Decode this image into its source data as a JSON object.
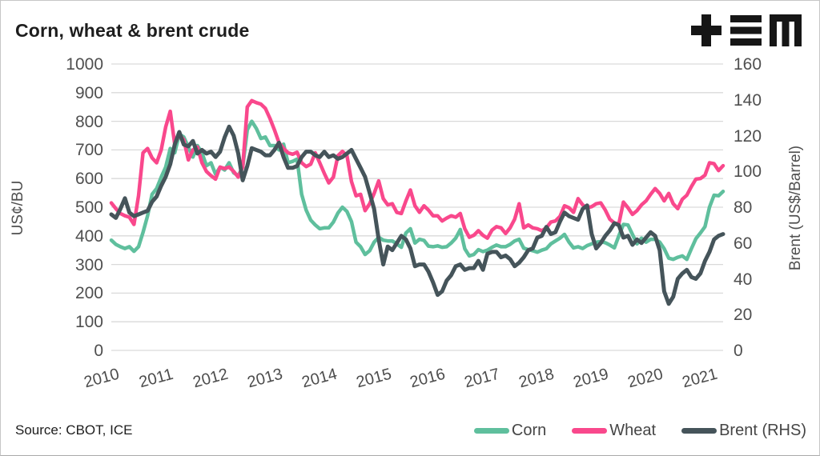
{
  "header": {
    "title": "Corn, wheat & brent crude",
    "logo_name": "tem-logo"
  },
  "footer": {
    "source": "Source: CBOT, ICE"
  },
  "colors": {
    "corn": "#5fbf9d",
    "wheat": "#f9488c",
    "brent": "#45545a",
    "gridline": "#d9d9d9",
    "tick_text": "#4f4f4f",
    "title_text": "#1d1d1d",
    "logo_black": "#161616"
  },
  "chart_data": {
    "type": "line",
    "title": "Corn, wheat & brent crude",
    "grid": "horizontal",
    "legend_position": "bottom-right",
    "x_min_year": 2010,
    "x_max_year": 2021.25,
    "x_tick_labels": [
      "2010",
      "2011",
      "2012",
      "2013",
      "2014",
      "2015",
      "2016",
      "2017",
      "2018",
      "2019",
      "2020",
      "2021"
    ],
    "left_axis": {
      "label": "US¢/BU",
      "min": 0,
      "max": 1000,
      "tick_step": 100,
      "tick_labels": [
        "0",
        "100",
        "200",
        "300",
        "400",
        "500",
        "600",
        "700",
        "800",
        "900",
        "1000"
      ]
    },
    "right_axis": {
      "label": "Brent (US$/Barrel)",
      "min": 0,
      "max": 160,
      "tick_step": 20,
      "tick_labels": [
        "0",
        "20",
        "40",
        "60",
        "80",
        "100",
        "120",
        "140",
        "160"
      ]
    },
    "frequency": "monthly",
    "start": "2010-01",
    "series": [
      {
        "name": "Corn",
        "axis": "left",
        "color": "#5fbf9d",
        "values": [
          385,
          370,
          362,
          356,
          362,
          346,
          362,
          412,
          470,
          545,
          565,
          605,
          640,
          705,
          690,
          755,
          745,
          710,
          675,
          715,
          690,
          645,
          655,
          615,
          640,
          630,
          655,
          620,
          610,
          640,
          770,
          800,
          775,
          740,
          745,
          715,
          715,
          700,
          720,
          655,
          660,
          668,
          545,
          490,
          455,
          438,
          425,
          428,
          428,
          448,
          480,
          500,
          485,
          450,
          378,
          362,
          335,
          348,
          378,
          395,
          385,
          382,
          382,
          372,
          360,
          410,
          425,
          375,
          388,
          384,
          364,
          362,
          365,
          360,
          362,
          375,
          392,
          422,
          355,
          330,
          335,
          352,
          345,
          350,
          360,
          368,
          362,
          362,
          370,
          382,
          388,
          357,
          352,
          348,
          343,
          350,
          355,
          372,
          382,
          392,
          405,
          378,
          358,
          362,
          356,
          366,
          372,
          378,
          380,
          376,
          368,
          358,
          400,
          440,
          438,
          405,
          372,
          392,
          378,
          388,
          388,
          378,
          355,
          322,
          318,
          325,
          330,
          318,
          355,
          390,
          410,
          432,
          500,
          542,
          540,
          555
        ]
      },
      {
        "name": "Wheat",
        "axis": "left",
        "color": "#f9488c",
        "values": [
          515,
          495,
          478,
          470,
          465,
          440,
          540,
          690,
          705,
          672,
          655,
          700,
          780,
          835,
          720,
          755,
          735,
          665,
          700,
          710,
          655,
          625,
          610,
          598,
          640,
          635,
          640,
          625,
          605,
          640,
          850,
          872,
          865,
          860,
          845,
          810,
          770,
          725,
          705,
          690,
          685,
          692,
          655,
          642,
          650,
          690,
          655,
          618,
          585,
          605,
          680,
          695,
          680,
          590,
          540,
          545,
          488,
          512,
          548,
          592,
          530,
          508,
          512,
          482,
          478,
          522,
          560,
          505,
          482,
          505,
          490,
          470,
          470,
          452,
          462,
          470,
          465,
          478,
          425,
          395,
          402,
          418,
          402,
          392,
          420,
          432,
          428,
          408,
          428,
          458,
          512,
          428,
          438,
          428,
          425,
          418,
          428,
          448,
          452,
          468,
          505,
          498,
          482,
          530,
          508,
          498,
          502,
          512,
          515,
          490,
          458,
          445,
          442,
          518,
          498,
          475,
          488,
          508,
          522,
          545,
          565,
          548,
          522,
          548,
          512,
          495,
          528,
          542,
          572,
          598,
          600,
          612,
          655,
          652,
          628,
          645
        ]
      },
      {
        "name": "Brent (RHS)",
        "axis": "right",
        "color": "#45545a",
        "values": [
          76,
          74,
          79,
          85,
          77,
          75,
          76,
          77,
          78,
          83,
          86,
          92,
          97,
          104,
          115,
          122,
          115,
          114,
          117,
          110,
          112,
          110,
          111,
          108,
          111,
          119,
          125,
          120,
          110,
          95,
          103,
          113,
          112,
          111,
          109,
          109,
          112,
          116,
          108,
          102,
          102,
          103,
          108,
          111,
          111,
          109,
          108,
          111,
          108,
          109,
          107,
          108,
          110,
          112,
          107,
          102,
          97,
          88,
          79,
          62,
          48,
          58,
          56,
          60,
          64,
          62,
          57,
          47,
          48,
          48,
          44,
          38,
          31,
          33,
          39,
          42,
          47,
          48,
          45,
          46,
          46,
          50,
          45,
          54,
          55,
          55,
          52,
          53,
          51,
          47,
          49,
          52,
          56,
          57,
          63,
          64,
          69,
          65,
          66,
          72,
          77,
          75,
          74,
          73,
          79,
          81,
          65,
          57,
          60,
          64,
          67,
          71,
          70,
          63,
          64,
          59,
          62,
          60,
          63,
          66,
          64,
          56,
          33,
          26,
          30,
          40,
          43,
          45,
          41,
          40,
          43,
          50,
          55,
          62,
          64,
          65
        ]
      }
    ]
  }
}
